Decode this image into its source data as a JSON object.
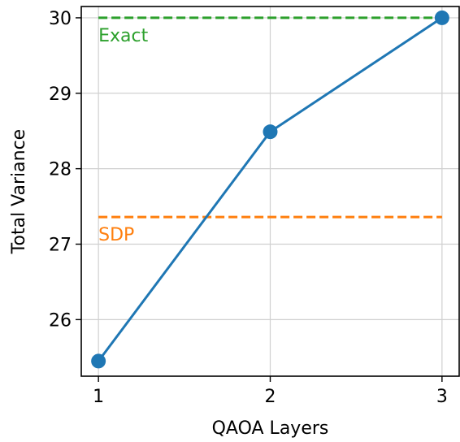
{
  "chart_data": {
    "type": "line",
    "xlabel": "QAOA Layers",
    "ylabel": "Total Variance",
    "xlim": [
      0.9,
      3.1
    ],
    "ylim": [
      25.25,
      30.15
    ],
    "x_ticks": [
      1,
      2,
      3
    ],
    "y_ticks": [
      26,
      27,
      28,
      29,
      30
    ],
    "grid": true,
    "series": [
      {
        "x": [
          1,
          2,
          3
        ],
        "values": [
          25.45,
          28.49,
          30.0
        ],
        "color": "#1f77b4"
      }
    ],
    "reference_lines": [
      {
        "label": "Exact",
        "value": 30.0,
        "color": "#2ca02c",
        "style": "dashed"
      },
      {
        "label": "SDP",
        "value": 27.36,
        "color": "#ff7f0e",
        "style": "dashed"
      }
    ]
  }
}
